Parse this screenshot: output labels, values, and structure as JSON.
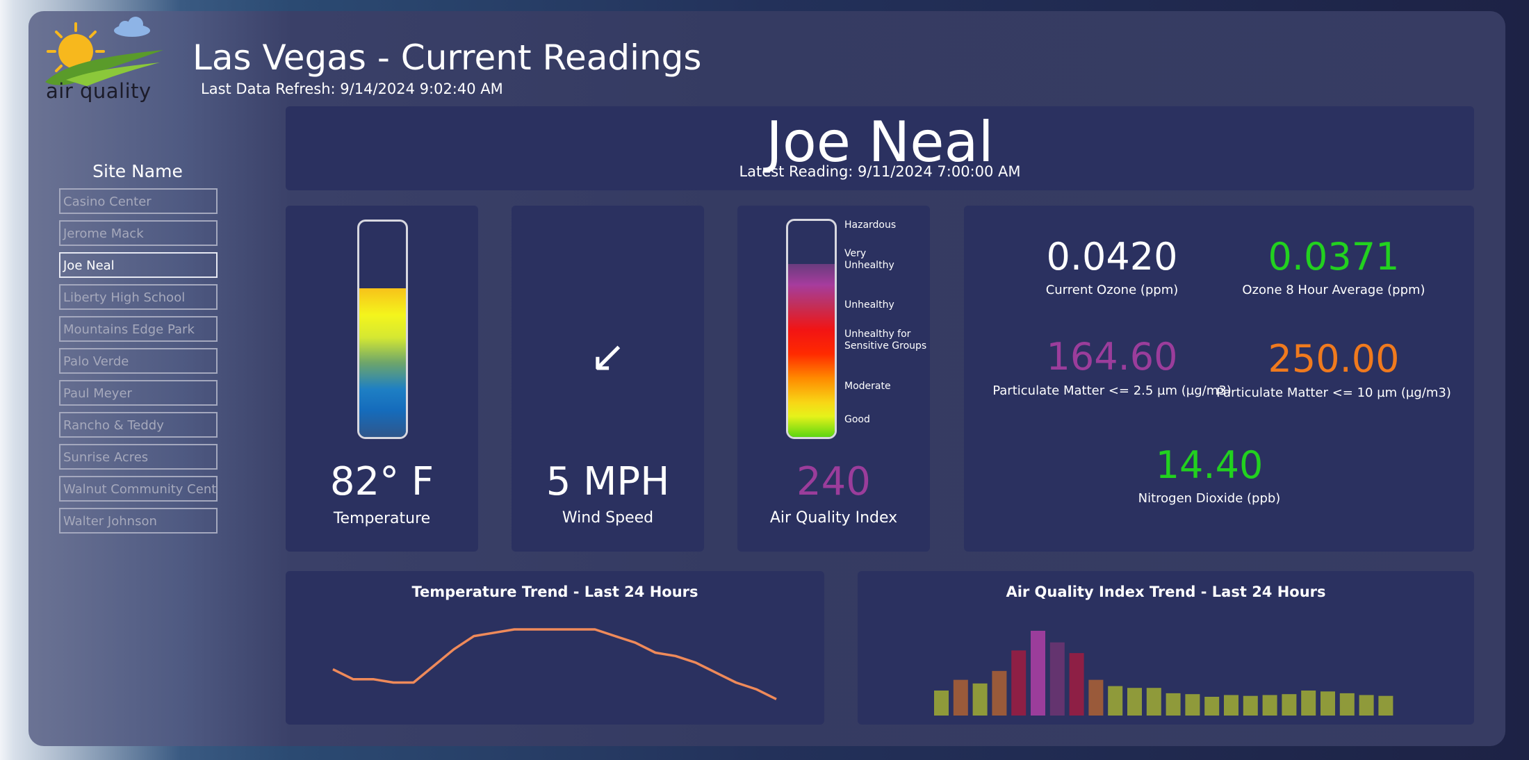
{
  "header": {
    "logo_text": "air quality",
    "title": "Las Vegas - Current Readings",
    "refresh": "Last Data Refresh: 9/14/2024 9:02:40 AM"
  },
  "sidebar": {
    "heading": "Site Name",
    "items": [
      {
        "label": "Casino Center",
        "selected": false
      },
      {
        "label": "Jerome Mack",
        "selected": false
      },
      {
        "label": "Joe Neal",
        "selected": true
      },
      {
        "label": "Liberty High School",
        "selected": false
      },
      {
        "label": "Mountains Edge Park",
        "selected": false
      },
      {
        "label": "Palo Verde",
        "selected": false
      },
      {
        "label": "Paul Meyer",
        "selected": false
      },
      {
        "label": "Rancho & Teddy",
        "selected": false
      },
      {
        "label": "Sunrise Acres",
        "selected": false
      },
      {
        "label": "Walnut Community Center",
        "selected": false
      },
      {
        "label": "Walter Johnson",
        "selected": false
      }
    ]
  },
  "site": {
    "name": "Joe Neal",
    "latest": "Latest Reading: 9/11/2024 7:00:00 AM"
  },
  "temperature": {
    "value": "82° F",
    "label": "Temperature",
    "fill_fraction": 0.69
  },
  "wind": {
    "arrow": "↙",
    "value": "5 MPH",
    "label": "Wind Speed"
  },
  "aqi": {
    "value": "240",
    "label": "Air Quality Index",
    "value_color": "#9b3d9b",
    "fill_fraction": 0.8,
    "scale": [
      {
        "line1": "Hazardous",
        "line2": ""
      },
      {
        "line1": "Very",
        "line2": "Unhealthy"
      },
      {
        "line1": "Unhealthy",
        "line2": ""
      },
      {
        "line1": "Unhealthy for",
        "line2": "Sensitive Groups"
      },
      {
        "line1": "Moderate",
        "line2": ""
      },
      {
        "line1": "Good",
        "line2": ""
      }
    ]
  },
  "metrics": {
    "ozone": {
      "value": "0.0420",
      "label": "Current Ozone (ppm)",
      "color": "#ffffff"
    },
    "ozone8": {
      "value": "0.0371",
      "label": "Ozone 8 Hour Average (ppm)",
      "color": "#22d11f"
    },
    "pm25": {
      "value": "164.60",
      "label": "Particulate Matter <= 2.5 µm (µg/m3)",
      "color": "#9b3d9b"
    },
    "pm10": {
      "value": "250.00",
      "label": "Particulate Matter <= 10 µm (µg/m3)",
      "color": "#f07a1e"
    },
    "no2": {
      "value": "14.40",
      "label": "Nitrogen Dioxide (ppb)",
      "color": "#22d11f"
    }
  },
  "chart_data": [
    {
      "type": "line",
      "title": "Temperature Trend - Last 24 Hours",
      "line_color": "#ef8a5a",
      "values": [
        89,
        86,
        86,
        85,
        85,
        90,
        95,
        99,
        100,
        101,
        101,
        101,
        101,
        101,
        99,
        97,
        94,
        93,
        91,
        88,
        85,
        83,
        80
      ]
    },
    {
      "type": "bar",
      "title": "Air Quality Index Trend - Last 24 Hours",
      "values": [
        28,
        40,
        36,
        50,
        73,
        95,
        82,
        70,
        40,
        33,
        31,
        31,
        25,
        24,
        21,
        23,
        22,
        23,
        24,
        28,
        27,
        25,
        23,
        22
      ],
      "colors": [
        "#8f9a3a",
        "#9a5a3a",
        "#8f9a3a",
        "#9a5a3a",
        "#8e1f45",
        "#9b3d9b",
        "#64346f",
        "#8e1f45",
        "#9a5a3a",
        "#8f9a3a",
        "#8f9a3a",
        "#8f9a3a",
        "#8f9a3a",
        "#8f9a3a",
        "#8f9a3a",
        "#8f9a3a",
        "#8f9a3a",
        "#8f9a3a",
        "#8f9a3a",
        "#8f9a3a",
        "#8f9a3a",
        "#8f9a3a",
        "#8f9a3a",
        "#8f9a3a"
      ]
    }
  ]
}
